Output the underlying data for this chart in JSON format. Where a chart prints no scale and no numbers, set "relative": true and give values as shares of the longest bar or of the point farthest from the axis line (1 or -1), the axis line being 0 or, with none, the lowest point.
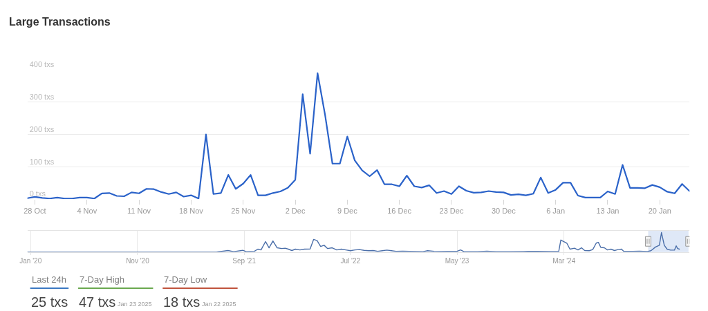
{
  "chart_data": [
    {
      "type": "line",
      "title": "Large Transactions",
      "x": [
        "2024-10-27",
        "2024-10-28",
        "2024-10-29",
        "2024-10-30",
        "2024-10-31",
        "2024-11-01",
        "2024-11-02",
        "2024-11-03",
        "2024-11-04",
        "2024-11-05",
        "2024-11-06",
        "2024-11-07",
        "2024-11-08",
        "2024-11-09",
        "2024-11-10",
        "2024-11-11",
        "2024-11-12",
        "2024-11-13",
        "2024-11-14",
        "2024-11-15",
        "2024-11-16",
        "2024-11-17",
        "2024-11-18",
        "2024-11-19",
        "2024-11-20",
        "2024-11-21",
        "2024-11-22",
        "2024-11-23",
        "2024-11-24",
        "2024-11-25",
        "2024-11-26",
        "2024-11-27",
        "2024-11-28",
        "2024-11-29",
        "2024-11-30",
        "2024-12-01",
        "2024-12-02",
        "2024-12-03",
        "2024-12-04",
        "2024-12-05",
        "2024-12-06",
        "2024-12-07",
        "2024-12-08",
        "2024-12-09",
        "2024-12-10",
        "2024-12-11",
        "2024-12-12",
        "2024-12-13",
        "2024-12-14",
        "2024-12-15",
        "2024-12-16",
        "2024-12-17",
        "2024-12-18",
        "2024-12-19",
        "2024-12-20",
        "2024-12-21",
        "2024-12-22",
        "2024-12-23",
        "2024-12-24",
        "2024-12-25",
        "2024-12-26",
        "2024-12-27",
        "2024-12-28",
        "2024-12-29",
        "2024-12-30",
        "2024-12-31",
        "2025-01-01",
        "2025-01-02",
        "2025-01-03",
        "2025-01-04",
        "2025-01-05",
        "2025-01-06",
        "2025-01-07",
        "2025-01-08",
        "2025-01-09",
        "2025-01-10",
        "2025-01-11",
        "2025-01-12",
        "2025-01-13",
        "2025-01-14",
        "2025-01-15",
        "2025-01-16",
        "2025-01-17",
        "2025-01-18",
        "2025-01-19",
        "2025-01-20",
        "2025-01-21",
        "2025-01-22",
        "2025-01-23",
        "2025-01-24"
      ],
      "series": [
        {
          "color": "#2a62c9",
          "values": [
            3,
            7,
            4,
            2,
            5,
            2,
            2,
            5,
            5,
            2,
            18,
            19,
            10,
            9,
            21,
            18,
            32,
            31,
            22,
            16,
            21,
            8,
            12,
            2,
            200,
            16,
            19,
            75,
            32,
            48,
            75,
            12,
            12,
            19,
            24,
            35,
            60,
            325,
            141,
            390,
            262,
            110,
            110,
            194,
            120,
            89,
            71,
            90,
            46,
            46,
            40,
            73,
            40,
            36,
            43,
            19,
            25,
            16,
            40,
            26,
            20,
            21,
            25,
            22,
            21,
            13,
            15,
            12,
            17,
            67,
            19,
            29,
            51,
            51,
            11,
            5,
            5,
            5,
            24,
            16,
            106,
            35,
            35,
            34,
            44,
            37,
            23,
            18,
            47,
            25
          ]
        }
      ],
      "xlim": [
        "2024-10-27",
        "2025-01-24"
      ],
      "xticks": [
        {
          "value": "2024-10-28",
          "label": "28 Oct"
        },
        {
          "value": "2024-11-04",
          "label": "4 Nov"
        },
        {
          "value": "2024-11-11",
          "label": "11 Nov"
        },
        {
          "value": "2024-11-18",
          "label": "18 Nov"
        },
        {
          "value": "2024-11-25",
          "label": "25 Nov"
        },
        {
          "value": "2024-12-02",
          "label": "2 Dec"
        },
        {
          "value": "2024-12-09",
          "label": "9 Dec"
        },
        {
          "value": "2024-12-16",
          "label": "16 Dec"
        },
        {
          "value": "2024-12-23",
          "label": "23 Dec"
        },
        {
          "value": "2024-12-30",
          "label": "30 Dec"
        },
        {
          "value": "2025-01-06",
          "label": "6 Jan"
        },
        {
          "value": "2025-01-13",
          "label": "13 Jan"
        },
        {
          "value": "2025-01-20",
          "label": "20 Jan"
        }
      ],
      "ylim": [
        0,
        400
      ],
      "yticks": [
        {
          "value": 0,
          "label": "0 txs"
        },
        {
          "value": 100,
          "label": "100 txs"
        },
        {
          "value": 200,
          "label": "200 txs"
        },
        {
          "value": 300,
          "label": "300 txs"
        },
        {
          "value": 400,
          "label": "400 txs"
        }
      ],
      "grid": "y"
    },
    {
      "type": "line",
      "relative": true,
      "x": [
        "2019-12-23",
        "2020-08-16",
        "2021-02-08",
        "2021-06-14",
        "2021-07-17",
        "2021-08-02",
        "2021-08-28",
        "2021-09-07",
        "2021-09-30",
        "2021-10-10",
        "2021-10-19",
        "2021-11-01",
        "2021-11-11",
        "2021-11-22",
        "2021-12-04",
        "2021-12-17",
        "2021-12-27",
        "2022-01-05",
        "2022-01-15",
        "2022-01-25",
        "2022-02-07",
        "2022-02-20",
        "2022-03-08",
        "2022-03-18",
        "2022-03-28",
        "2022-04-07",
        "2022-04-17",
        "2022-04-27",
        "2022-05-10",
        "2022-05-23",
        "2022-06-05",
        "2022-06-18",
        "2022-07-01",
        "2022-07-14",
        "2022-07-27",
        "2022-08-09",
        "2022-08-22",
        "2022-09-04",
        "2022-09-17",
        "2022-09-30",
        "2022-10-13",
        "2022-10-26",
        "2022-11-08",
        "2022-11-27",
        "2022-12-17",
        "2023-01-05",
        "2023-01-24",
        "2023-02-06",
        "2023-02-25",
        "2023-03-17",
        "2023-04-05",
        "2023-05-01",
        "2023-05-11",
        "2023-05-21",
        "2023-06-29",
        "2023-07-25",
        "2023-08-20",
        "2023-09-28",
        "2023-11-06",
        "2023-12-15",
        "2024-01-23",
        "2024-02-15",
        "2024-02-21",
        "2024-03-09",
        "2024-03-18",
        "2024-03-31",
        "2024-04-10",
        "2024-04-20",
        "2024-04-29",
        "2024-05-12",
        "2024-05-22",
        "2024-06-01",
        "2024-06-07",
        "2024-06-14",
        "2024-06-24",
        "2024-07-03",
        "2024-07-13",
        "2024-07-23",
        "2024-08-02",
        "2024-08-12",
        "2024-08-18",
        "2024-09-13",
        "2024-10-02",
        "2024-10-25",
        "2024-11-04",
        "2024-11-17",
        "2024-11-28",
        "2024-12-04",
        "2024-12-12",
        "2024-12-20",
        "2024-12-30",
        "2025-01-10",
        "2025-01-15",
        "2025-01-19",
        "2025-01-24"
      ],
      "series": [
        {
          "color": "#4a6ea9",
          "values": [
            0,
            0,
            0,
            0,
            0.08,
            0.02,
            0.09,
            0.02,
            0.04,
            0.15,
            0.11,
            0.54,
            0.22,
            0.57,
            0.22,
            0.18,
            0.2,
            0.15,
            0.08,
            0.15,
            0.11,
            0.15,
            0.16,
            0.65,
            0.59,
            0.29,
            0.35,
            0.18,
            0.22,
            0.11,
            0.15,
            0.11,
            0.07,
            0.11,
            0.13,
            0.09,
            0.07,
            0.08,
            0.04,
            0.07,
            0.1,
            0.07,
            0.04,
            0.05,
            0.04,
            0.03,
            0.02,
            0.07,
            0.04,
            0.03,
            0.04,
            0.04,
            0.11,
            0.02,
            0.02,
            0.05,
            0.02,
            0.02,
            0.03,
            0.04,
            0.03,
            0.03,
            0.62,
            0.46,
            0.15,
            0.2,
            0.11,
            0.22,
            0.08,
            0.07,
            0.13,
            0.46,
            0.5,
            0.24,
            0.22,
            0.11,
            0.15,
            0.08,
            0.13,
            0.15,
            0.04,
            0.04,
            0.05,
            0.03,
            0.07,
            0.26,
            0.35,
            1,
            0.35,
            0.15,
            0.1,
            0.1,
            0.32,
            0.18,
            0.15
          ]
        }
      ],
      "xlim": [
        "2019-12-23",
        "2025-02-22"
      ],
      "xticks": [
        {
          "value": "2020-01-01",
          "label": "Jan '20"
        },
        {
          "value": "2020-11-01",
          "label": "Nov '20"
        },
        {
          "value": "2021-09-01",
          "label": "Sep '21"
        },
        {
          "value": "2022-07-01",
          "label": "Jul '22"
        },
        {
          "value": "2023-05-01",
          "label": "May '23"
        },
        {
          "value": "2024-03-01",
          "label": "Mar '24"
        }
      ],
      "grid": "x",
      "bands": [
        {
          "axis": "x",
          "from": "2024-10-27",
          "to": "2025-02-19",
          "color": "#dfe8f7"
        }
      ]
    },
    {
      "type": "other",
      "categories": [
        "Last 24h",
        "7-Day High",
        "7-Day Low"
      ],
      "value_labels": [
        "25 txs",
        "47 txs",
        "18 txs"
      ],
      "colors": [
        "#3a78c2",
        "#6aa84f",
        "#c0533c"
      ],
      "annotations": [
        {
          "text": "Jan 23 2025",
          "x": "7-Day High"
        },
        {
          "text": "Jan 22 2025",
          "x": "7-Day Low"
        }
      ]
    }
  ]
}
